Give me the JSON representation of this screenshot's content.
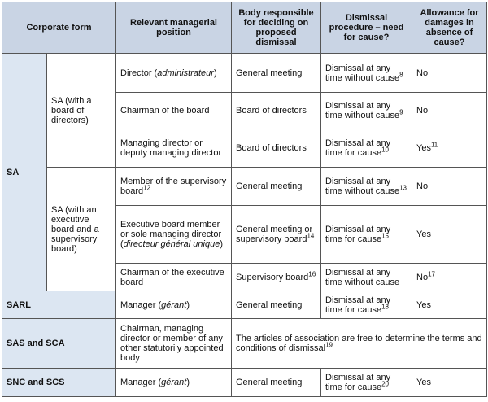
{
  "header": [
    "Corporate form",
    "Relevant managerial position",
    "Body responsible for deciding on proposed dismissal",
    "Dismissal procedure – need for cause?",
    "Allowance for damages in absence of cause?"
  ],
  "rows": [
    [
      [
        "SA"
      ],
      [
        "SA (with a board of directors)"
      ],
      [
        "Director (",
        {
          "i": "administrateur"
        },
        ")"
      ],
      [
        "General meeting"
      ],
      [
        "Dismissal at any time without cause",
        {
          "sup": "8"
        }
      ],
      [
        "No"
      ]
    ],
    [
      [
        "Chairman of the board"
      ],
      [
        "Board of directors"
      ],
      [
        "Dismissal at any time without cause",
        {
          "sup": "9"
        }
      ],
      [
        "No"
      ]
    ],
    [
      [
        "Managing director or deputy managing director"
      ],
      [
        "Board of directors"
      ],
      [
        "Dismissal at any time for cause",
        {
          "sup": "10"
        }
      ],
      [
        "Yes",
        {
          "sup": "11"
        }
      ]
    ],
    [
      [
        "SA (with an executive board and a supervisory board)"
      ],
      [
        "Member of the supervisory board",
        {
          "sup": "12"
        }
      ],
      [
        "General meeting"
      ],
      [
        "Dismissal at any time without cause",
        {
          "sup": "13"
        }
      ],
      [
        "No"
      ]
    ],
    [
      [
        "Executive board member or sole managing director (",
        {
          "i": "directeur général unique"
        },
        ")"
      ],
      [
        "General meeting or supervisory board",
        {
          "sup": "14"
        }
      ],
      [
        "Dismissal at any time for cause",
        {
          "sup": "15"
        }
      ],
      [
        "Yes"
      ]
    ],
    [
      [
        "Chairman of the executive board"
      ],
      [
        "Supervisory board",
        {
          "sup": "16"
        }
      ],
      [
        "Dismissal at any time without cause"
      ],
      [
        "No",
        {
          "sup": "17"
        }
      ]
    ],
    [
      [
        "SARL"
      ],
      [
        "Manager (",
        {
          "i": "gérant"
        },
        ")"
      ],
      [
        "General meeting"
      ],
      [
        "Dismissal at any time for cause",
        {
          "sup": "18"
        }
      ],
      [
        "Yes"
      ]
    ],
    [
      [
        "SAS and SCA"
      ],
      [
        "Chairman, managing director or member of any other statutorily appointed body"
      ],
      [
        "The articles of association are free to determine the terms and conditions of dismissal",
        {
          "sup": "19"
        }
      ]
    ],
    [
      [
        "SNC and SCS"
      ],
      [
        "Manager (",
        {
          "i": "gérant"
        },
        ")"
      ],
      [
        "General meeting"
      ],
      [
        "Dismissal at any time for cause",
        {
          "sup": "20"
        }
      ],
      [
        "Yes"
      ]
    ]
  ]
}
